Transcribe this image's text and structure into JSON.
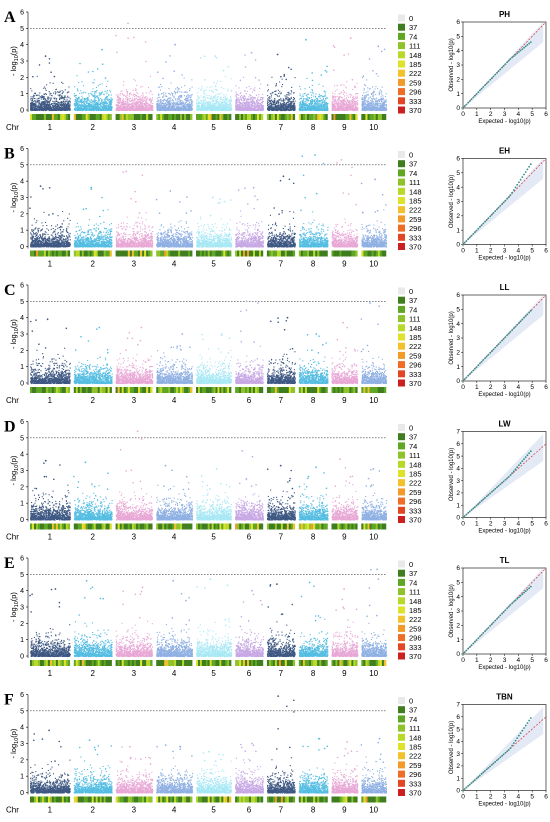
{
  "chart_data": {
    "type": "scatter",
    "description_type": "manhattan+qq",
    "threshold": 5,
    "manhattan_yticks": [
      0,
      1,
      2,
      3,
      4,
      5,
      6
    ],
    "ylabel": "-log10(p)",
    "chr_axis_label": "Chr",
    "chromosomes": [
      "1",
      "2",
      "3",
      "4",
      "5",
      "6",
      "7",
      "8",
      "9",
      "10"
    ],
    "chr_colors": [
      "#3e5883",
      "#55bde2",
      "#e8a8d6",
      "#8fb0e3",
      "#a9e8f5",
      "#c7a8e4",
      "#3e5883",
      "#55bde2",
      "#e8a8d6",
      "#8fb0e3"
    ],
    "legend": {
      "values": [
        "0",
        "37",
        "74",
        "111",
        "148",
        "185",
        "222",
        "259",
        "296",
        "333",
        "370"
      ],
      "colors": [
        "#e9e9e9",
        "#3f7d1e",
        "#5ea624",
        "#90c22b",
        "#b9d92a",
        "#dfe22a",
        "#f2c12b",
        "#f29a2a",
        "#ee6d27",
        "#e24625",
        "#cc1f1f"
      ]
    },
    "qq": {
      "xlabel": "Expected - log10(p)",
      "ylabel": "Observed - log10(p)",
      "xticks": [
        0,
        1,
        2,
        3,
        4,
        5,
        6
      ],
      "yticks": [
        0,
        1,
        2,
        3,
        4,
        5,
        6,
        7
      ]
    },
    "panels": [
      {
        "label": "A",
        "trait": "PH",
        "ymax": 6,
        "show_chr_label": true,
        "peaks": [
          [
            1,
            3.3
          ],
          [
            2,
            3.7
          ],
          [
            3,
            5.3
          ],
          [
            4,
            4.0
          ],
          [
            5,
            3.3
          ],
          [
            6,
            3.5
          ],
          [
            7,
            3.4
          ],
          [
            8,
            4.3
          ],
          [
            9,
            4.4
          ],
          [
            10,
            3.9
          ]
        ],
        "qq_ymax": 6,
        "qq_tail": 4.6
      },
      {
        "label": "B",
        "trait": "EH",
        "ymax": 6,
        "show_chr_label": false,
        "peaks": [
          [
            1,
            3.7
          ],
          [
            2,
            3.6
          ],
          [
            3,
            4.6
          ],
          [
            4,
            3.4
          ],
          [
            5,
            3.0
          ],
          [
            6,
            3.6
          ],
          [
            7,
            4.3
          ],
          [
            8,
            5.6
          ],
          [
            9,
            5.3
          ],
          [
            10,
            4.1
          ]
        ],
        "qq_ymax": 6,
        "qq_tail": 5.6
      },
      {
        "label": "C",
        "trait": "LL",
        "ymax": 6,
        "show_chr_label": true,
        "peaks": [
          [
            1,
            3.9
          ],
          [
            2,
            3.4
          ],
          [
            3,
            3.4
          ],
          [
            4,
            3.0
          ],
          [
            5,
            3.0
          ],
          [
            6,
            5.0
          ],
          [
            7,
            4.0
          ],
          [
            8,
            3.0
          ],
          [
            9,
            3.7
          ],
          [
            10,
            4.9
          ]
        ],
        "qq_ymax": 6,
        "qq_tail": 4.9
      },
      {
        "label": "D",
        "trait": "LW",
        "ymax": 6,
        "show_chr_label": true,
        "peaks": [
          [
            1,
            3.6
          ],
          [
            2,
            3.5
          ],
          [
            3,
            5.4
          ],
          [
            4,
            3.3
          ],
          [
            5,
            3.1
          ],
          [
            6,
            4.2
          ],
          [
            7,
            3.3
          ],
          [
            8,
            3.2
          ],
          [
            9,
            3.7
          ],
          [
            10,
            3.1
          ]
        ],
        "qq_ymax": 7,
        "qq_tail": 5.4
      },
      {
        "label": "E",
        "trait": "TL",
        "ymax": 6,
        "show_chr_label": false,
        "peaks": [
          [
            1,
            4.1
          ],
          [
            2,
            4.6
          ],
          [
            3,
            4.2
          ],
          [
            4,
            4.6
          ],
          [
            5,
            4.7
          ],
          [
            6,
            4.0
          ],
          [
            7,
            4.4
          ],
          [
            8,
            4.5
          ],
          [
            9,
            4.1
          ],
          [
            10,
            5.3
          ]
        ],
        "qq_ymax": 6,
        "qq_tail": 4.7
      },
      {
        "label": "F",
        "trait": "TBN",
        "ymax": 6,
        "show_chr_label": true,
        "peaks": [
          [
            1,
            3.8
          ],
          [
            2,
            3.2
          ],
          [
            3,
            2.8
          ],
          [
            4,
            2.9
          ],
          [
            5,
            2.5
          ],
          [
            6,
            3.0
          ],
          [
            7,
            5.9
          ],
          [
            8,
            3.3
          ],
          [
            9,
            3.1
          ],
          [
            10,
            3.3
          ]
        ],
        "qq_ymax": 7,
        "qq_tail": 5.9
      }
    ]
  }
}
